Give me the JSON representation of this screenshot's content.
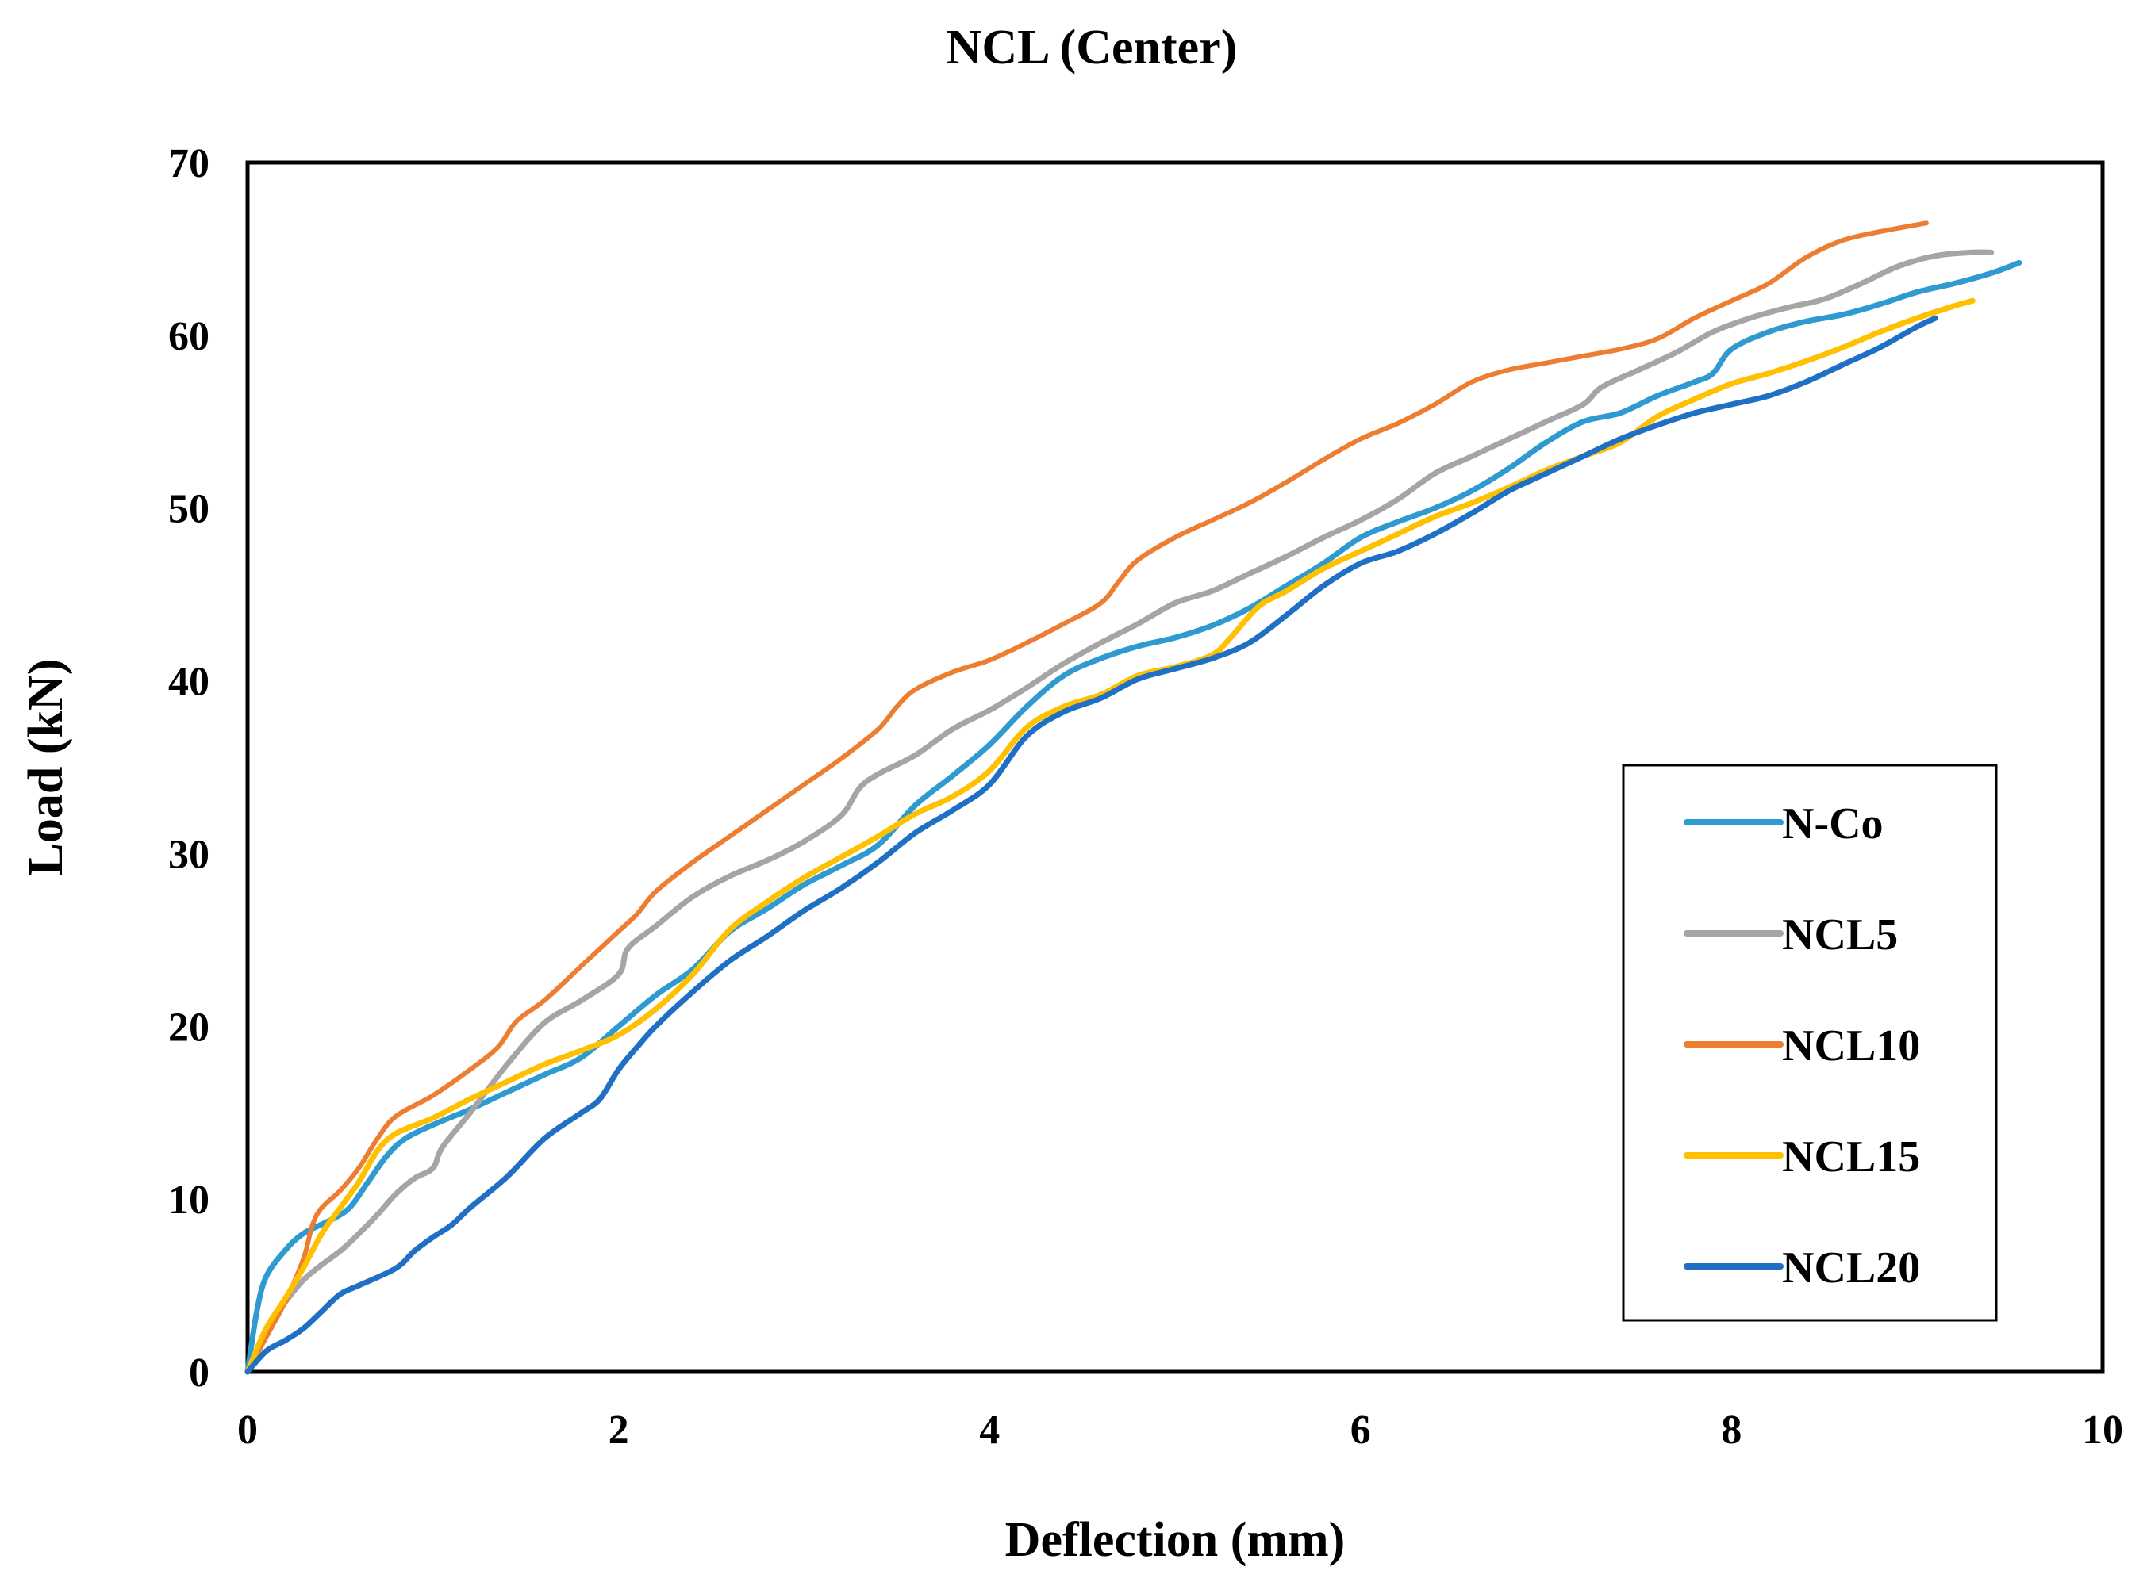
{
  "chart_data": {
    "type": "line",
    "title": "NCL (Center)",
    "xlabel": "Deflection (mm)",
    "ylabel": "Load (kN)",
    "xlim": [
      0,
      10
    ],
    "ylim": [
      0,
      70
    ],
    "x_ticks": [
      0,
      2,
      4,
      6,
      8,
      10
    ],
    "y_ticks": [
      0,
      10,
      20,
      30,
      40,
      50,
      60,
      70
    ],
    "grid": false,
    "legend_position": "right",
    "series": [
      {
        "name": "N-Co",
        "color": "#2E9AD0",
        "points": [
          [
            0,
            0
          ],
          [
            0.05,
            3.5
          ],
          [
            0.1,
            5.5
          ],
          [
            0.2,
            7
          ],
          [
            0.3,
            8
          ],
          [
            0.45,
            8.8
          ],
          [
            0.55,
            9.5
          ],
          [
            0.65,
            11
          ],
          [
            0.75,
            12.5
          ],
          [
            0.85,
            13.5
          ],
          [
            1.0,
            14.3
          ],
          [
            1.2,
            15.2
          ],
          [
            1.4,
            16.2
          ],
          [
            1.6,
            17.2
          ],
          [
            1.8,
            18.2
          ],
          [
            2.0,
            20
          ],
          [
            2.2,
            21.8
          ],
          [
            2.4,
            23.3
          ],
          [
            2.6,
            25.5
          ],
          [
            2.8,
            26.8
          ],
          [
            3.0,
            28.2
          ],
          [
            3.2,
            29.3
          ],
          [
            3.4,
            30.5
          ],
          [
            3.6,
            32.8
          ],
          [
            3.8,
            34.5
          ],
          [
            4.0,
            36.3
          ],
          [
            4.2,
            38.5
          ],
          [
            4.4,
            40.3
          ],
          [
            4.6,
            41.3
          ],
          [
            4.8,
            42
          ],
          [
            5.0,
            42.5
          ],
          [
            5.2,
            43.2
          ],
          [
            5.4,
            44.2
          ],
          [
            5.6,
            45.5
          ],
          [
            5.8,
            46.8
          ],
          [
            6.0,
            48.3
          ],
          [
            6.2,
            49.2
          ],
          [
            6.4,
            50
          ],
          [
            6.6,
            51
          ],
          [
            6.8,
            52.3
          ],
          [
            7.0,
            53.8
          ],
          [
            7.2,
            55
          ],
          [
            7.4,
            55.5
          ],
          [
            7.6,
            56.5
          ],
          [
            7.8,
            57.3
          ],
          [
            7.9,
            57.8
          ],
          [
            8.0,
            59.2
          ],
          [
            8.2,
            60.2
          ],
          [
            8.4,
            60.8
          ],
          [
            8.6,
            61.2
          ],
          [
            8.8,
            61.8
          ],
          [
            9.0,
            62.5
          ],
          [
            9.2,
            63
          ],
          [
            9.4,
            63.6
          ],
          [
            9.55,
            64.2
          ]
        ]
      },
      {
        "name": "NCL5",
        "color": "#A5A5A5",
        "points": [
          [
            0,
            0
          ],
          [
            0.1,
            2.5
          ],
          [
            0.2,
            4
          ],
          [
            0.3,
            5.3
          ],
          [
            0.4,
            6.2
          ],
          [
            0.5,
            7
          ],
          [
            0.6,
            8
          ],
          [
            0.7,
            9.1
          ],
          [
            0.8,
            10.3
          ],
          [
            0.9,
            11.2
          ],
          [
            1.0,
            11.8
          ],
          [
            1.05,
            13
          ],
          [
            1.2,
            15
          ],
          [
            1.4,
            17.8
          ],
          [
            1.6,
            20.2
          ],
          [
            1.8,
            21.5
          ],
          [
            2.0,
            23
          ],
          [
            2.05,
            24.5
          ],
          [
            2.2,
            25.8
          ],
          [
            2.4,
            27.5
          ],
          [
            2.6,
            28.7
          ],
          [
            2.8,
            29.6
          ],
          [
            3.0,
            30.7
          ],
          [
            3.2,
            32.2
          ],
          [
            3.3,
            33.8
          ],
          [
            3.4,
            34.6
          ],
          [
            3.6,
            35.7
          ],
          [
            3.8,
            37.2
          ],
          [
            4.0,
            38.3
          ],
          [
            4.2,
            39.6
          ],
          [
            4.4,
            41
          ],
          [
            4.6,
            42.2
          ],
          [
            4.8,
            43.3
          ],
          [
            5.0,
            44.5
          ],
          [
            5.2,
            45.2
          ],
          [
            5.4,
            46.2
          ],
          [
            5.6,
            47.2
          ],
          [
            5.8,
            48.3
          ],
          [
            6.0,
            49.3
          ],
          [
            6.2,
            50.5
          ],
          [
            6.4,
            52
          ],
          [
            6.6,
            53
          ],
          [
            6.8,
            54
          ],
          [
            7.0,
            55
          ],
          [
            7.2,
            56
          ],
          [
            7.3,
            57
          ],
          [
            7.5,
            58
          ],
          [
            7.7,
            59
          ],
          [
            7.9,
            60.2
          ],
          [
            8.1,
            61
          ],
          [
            8.3,
            61.6
          ],
          [
            8.5,
            62.1
          ],
          [
            8.7,
            63
          ],
          [
            8.9,
            64
          ],
          [
            9.1,
            64.6
          ],
          [
            9.3,
            64.8
          ],
          [
            9.4,
            64.8
          ]
        ]
      },
      {
        "name": "NCL10",
        "color": "#ED7D31",
        "points": [
          [
            0,
            0
          ],
          [
            0.1,
            2
          ],
          [
            0.2,
            4
          ],
          [
            0.3,
            6.5
          ],
          [
            0.35,
            8.5
          ],
          [
            0.4,
            9.5
          ],
          [
            0.5,
            10.5
          ],
          [
            0.6,
            11.8
          ],
          [
            0.7,
            13.5
          ],
          [
            0.8,
            14.8
          ],
          [
            1.0,
            16
          ],
          [
            1.2,
            17.5
          ],
          [
            1.35,
            18.8
          ],
          [
            1.45,
            20.3
          ],
          [
            1.6,
            21.5
          ],
          [
            1.8,
            23.5
          ],
          [
            2.0,
            25.5
          ],
          [
            2.1,
            26.5
          ],
          [
            2.2,
            27.8
          ],
          [
            2.4,
            29.5
          ],
          [
            2.6,
            31
          ],
          [
            2.8,
            32.5
          ],
          [
            3.0,
            34
          ],
          [
            3.2,
            35.5
          ],
          [
            3.4,
            37.2
          ],
          [
            3.5,
            38.5
          ],
          [
            3.6,
            39.5
          ],
          [
            3.8,
            40.5
          ],
          [
            4.0,
            41.2
          ],
          [
            4.2,
            42.2
          ],
          [
            4.4,
            43.3
          ],
          [
            4.6,
            44.5
          ],
          [
            4.7,
            45.8
          ],
          [
            4.8,
            47
          ],
          [
            5.0,
            48.3
          ],
          [
            5.2,
            49.3
          ],
          [
            5.4,
            50.3
          ],
          [
            5.6,
            51.5
          ],
          [
            5.8,
            52.8
          ],
          [
            6.0,
            54
          ],
          [
            6.2,
            54.9
          ],
          [
            6.4,
            56
          ],
          [
            6.6,
            57.3
          ],
          [
            6.8,
            58
          ],
          [
            7.0,
            58.4
          ],
          [
            7.2,
            58.8
          ],
          [
            7.4,
            59.2
          ],
          [
            7.6,
            59.8
          ],
          [
            7.8,
            61
          ],
          [
            8.0,
            62
          ],
          [
            8.2,
            63
          ],
          [
            8.4,
            64.5
          ],
          [
            8.6,
            65.5
          ],
          [
            8.8,
            66
          ],
          [
            9.0,
            66.4
          ],
          [
            9.05,
            66.5
          ]
        ]
      },
      {
        "name": "NCL15",
        "color": "#FFC000",
        "points": [
          [
            0,
            0
          ],
          [
            0.1,
            2.5
          ],
          [
            0.2,
            4.2
          ],
          [
            0.3,
            6
          ],
          [
            0.4,
            8
          ],
          [
            0.5,
            9.5
          ],
          [
            0.6,
            11
          ],
          [
            0.7,
            12.8
          ],
          [
            0.8,
            13.8
          ],
          [
            1.0,
            14.7
          ],
          [
            1.2,
            15.8
          ],
          [
            1.4,
            16.8
          ],
          [
            1.6,
            17.8
          ],
          [
            1.8,
            18.6
          ],
          [
            2.0,
            19.5
          ],
          [
            2.2,
            21
          ],
          [
            2.4,
            23
          ],
          [
            2.6,
            25.6
          ],
          [
            2.8,
            27.2
          ],
          [
            3.0,
            28.6
          ],
          [
            3.2,
            29.8
          ],
          [
            3.4,
            31
          ],
          [
            3.6,
            32.3
          ],
          [
            3.8,
            33.3
          ],
          [
            4.0,
            34.8
          ],
          [
            4.2,
            37.3
          ],
          [
            4.4,
            38.5
          ],
          [
            4.6,
            39.2
          ],
          [
            4.8,
            40.3
          ],
          [
            5.0,
            40.8
          ],
          [
            5.2,
            41.5
          ],
          [
            5.3,
            42.5
          ],
          [
            5.45,
            44.3
          ],
          [
            5.6,
            45.2
          ],
          [
            5.8,
            46.5
          ],
          [
            6.0,
            47.5
          ],
          [
            6.2,
            48.5
          ],
          [
            6.4,
            49.5
          ],
          [
            6.6,
            50.3
          ],
          [
            6.8,
            51.2
          ],
          [
            7.0,
            52.2
          ],
          [
            7.2,
            53
          ],
          [
            7.4,
            53.8
          ],
          [
            7.6,
            55.3
          ],
          [
            7.8,
            56.3
          ],
          [
            8.0,
            57.2
          ],
          [
            8.2,
            57.8
          ],
          [
            8.4,
            58.5
          ],
          [
            8.6,
            59.3
          ],
          [
            8.8,
            60.2
          ],
          [
            9.0,
            61
          ],
          [
            9.2,
            61.7
          ],
          [
            9.3,
            62
          ]
        ]
      },
      {
        "name": "NCL20",
        "color": "#1F6FC5",
        "points": [
          [
            0,
            0
          ],
          [
            0.1,
            1.2
          ],
          [
            0.2,
            1.8
          ],
          [
            0.3,
            2.5
          ],
          [
            0.4,
            3.5
          ],
          [
            0.5,
            4.5
          ],
          [
            0.6,
            5
          ],
          [
            0.8,
            6
          ],
          [
            0.9,
            7
          ],
          [
            1.0,
            7.8
          ],
          [
            1.1,
            8.5
          ],
          [
            1.2,
            9.5
          ],
          [
            1.4,
            11.3
          ],
          [
            1.6,
            13.5
          ],
          [
            1.8,
            15
          ],
          [
            1.9,
            15.8
          ],
          [
            2.0,
            17.5
          ],
          [
            2.1,
            18.8
          ],
          [
            2.2,
            20
          ],
          [
            2.4,
            22
          ],
          [
            2.6,
            23.8
          ],
          [
            2.8,
            25.2
          ],
          [
            3.0,
            26.7
          ],
          [
            3.2,
            28
          ],
          [
            3.4,
            29.5
          ],
          [
            3.6,
            31.2
          ],
          [
            3.8,
            32.5
          ],
          [
            4.0,
            34
          ],
          [
            4.2,
            36.8
          ],
          [
            4.4,
            38.2
          ],
          [
            4.6,
            39
          ],
          [
            4.8,
            40.1
          ],
          [
            5.0,
            40.7
          ],
          [
            5.2,
            41.3
          ],
          [
            5.4,
            42.2
          ],
          [
            5.6,
            43.8
          ],
          [
            5.8,
            45.5
          ],
          [
            6.0,
            46.8
          ],
          [
            6.2,
            47.5
          ],
          [
            6.4,
            48.5
          ],
          [
            6.6,
            49.7
          ],
          [
            6.8,
            51
          ],
          [
            7.0,
            52
          ],
          [
            7.2,
            53
          ],
          [
            7.4,
            54
          ],
          [
            7.6,
            54.8
          ],
          [
            7.8,
            55.5
          ],
          [
            8.0,
            56
          ],
          [
            8.2,
            56.5
          ],
          [
            8.4,
            57.3
          ],
          [
            8.6,
            58.3
          ],
          [
            8.8,
            59.3
          ],
          [
            9.0,
            60.5
          ],
          [
            9.1,
            61
          ]
        ]
      }
    ]
  }
}
